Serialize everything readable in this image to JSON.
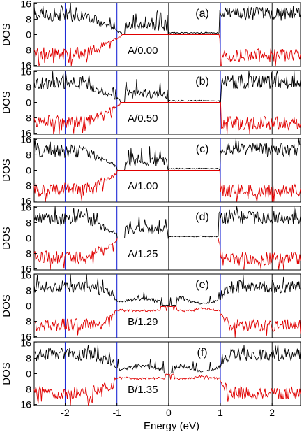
{
  "chart_data": {
    "type": "line",
    "xlabel": "Energy (eV)",
    "xlim": [
      -2.6,
      2.55
    ],
    "xticks": [
      "-2",
      "-1",
      "0",
      "1",
      "2"
    ],
    "ylabel": "DOS",
    "yticks_top": [
      "16",
      "8",
      "0"
    ],
    "yticks_bottom": [
      "8",
      "16"
    ],
    "reference_lines_x": [
      -2,
      -1,
      0,
      1,
      2
    ],
    "colors": {
      "up": "#000000",
      "down": "#e00000",
      "reference": "#1f2bd6"
    },
    "panels": [
      {
        "tag": "(a)",
        "annotation": "A/0.00",
        "gap": [
          -0.88,
          0.97
        ]
      },
      {
        "tag": "(b)",
        "annotation": "A/0.50",
        "gap": [
          -0.92,
          1.0
        ]
      },
      {
        "tag": "(c)",
        "annotation": "A/1.00",
        "gap": [
          -0.98,
          0.98
        ]
      },
      {
        "tag": "(d)",
        "annotation": "A/1.25",
        "gap": [
          -0.98,
          0.95
        ]
      },
      {
        "tag": "(e)",
        "annotation": "B/1.29",
        "gap": [
          -0.15,
          0.15
        ]
      },
      {
        "tag": "(f)",
        "annotation": "B/1.35",
        "gap": [
          -0.1,
          0.1
        ]
      }
    ]
  }
}
